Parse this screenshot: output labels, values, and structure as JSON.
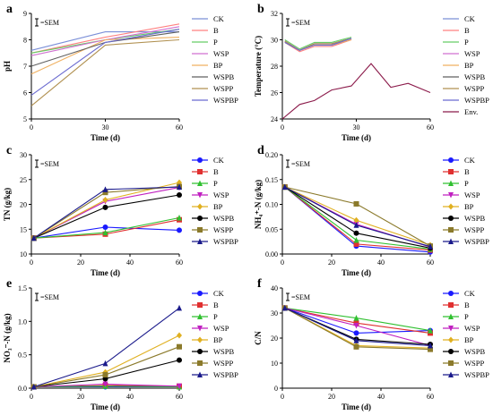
{
  "chart_data": [
    {
      "panel": "a",
      "type": "line",
      "legend_position": "right",
      "sem_note": "=SEM",
      "xlabel": "Time (d)",
      "ylabel": "pH",
      "xlim": [
        0,
        60
      ],
      "ylim": [
        5,
        9
      ],
      "xticks": [
        "0",
        "30",
        "60"
      ],
      "yticks": [
        "5",
        "6",
        "7",
        "8",
        "9"
      ],
      "x": [
        0,
        30,
        60
      ],
      "series": [
        {
          "name": "CK",
          "color": "#7b8fd8",
          "values": [
            7.6,
            8.3,
            8.3
          ]
        },
        {
          "name": "B",
          "color": "#ff8080",
          "values": [
            7.5,
            8.1,
            8.6
          ]
        },
        {
          "name": "P",
          "color": "#66cc66",
          "values": [
            7.5,
            8.0,
            8.4
          ]
        },
        {
          "name": "WSP",
          "color": "#d070d0",
          "values": [
            7.4,
            8.0,
            8.5
          ]
        },
        {
          "name": "BP",
          "color": "#f0b060",
          "values": [
            6.7,
            8.0,
            8.1
          ]
        },
        {
          "name": "WSPB",
          "color": "#606060",
          "values": [
            7.0,
            7.9,
            8.3
          ]
        },
        {
          "name": "WSPP",
          "color": "#b09050",
          "values": [
            5.5,
            7.8,
            8.0
          ]
        },
        {
          "name": "WSPBP",
          "color": "#6b6bd0",
          "values": [
            5.9,
            7.9,
            8.4
          ]
        }
      ]
    },
    {
      "panel": "b",
      "type": "line",
      "legend_position": "right",
      "sem_note": "=SEM",
      "xlabel": "Time (d)",
      "ylabel": "Temperature (°C)",
      "xlim": [
        0,
        60
      ],
      "ylim": [
        24,
        32
      ],
      "xticks": [
        "0",
        "30",
        "60"
      ],
      "yticks": [
        "24",
        "26",
        "28",
        "30",
        "32"
      ],
      "series": [
        {
          "name": "CK",
          "color": "#7b8fd8",
          "x": [
            1,
            7,
            13,
            20,
            28
          ],
          "values": [
            29.9,
            29.2,
            29.7,
            29.7,
            30.1
          ]
        },
        {
          "name": "B",
          "color": "#ff8080",
          "x": [
            1,
            7,
            13,
            20,
            28
          ],
          "values": [
            29.8,
            29.1,
            29.5,
            29.5,
            30.0
          ]
        },
        {
          "name": "P",
          "color": "#66cc66",
          "x": [
            1,
            7,
            13,
            20,
            28
          ],
          "values": [
            30.0,
            29.3,
            29.8,
            29.8,
            30.2
          ]
        },
        {
          "name": "WSP",
          "color": "#d070d0",
          "x": [
            1,
            7,
            13,
            20,
            28
          ],
          "values": [
            29.9,
            29.2,
            29.6,
            29.6,
            30.1
          ]
        },
        {
          "name": "BP",
          "color": "#f0b060",
          "x": [
            1,
            7,
            13,
            20,
            28
          ],
          "values": [
            29.8,
            29.2,
            29.6,
            29.6,
            30.0
          ]
        },
        {
          "name": "WSPB",
          "color": "#606060",
          "x": [
            1,
            7,
            13,
            20,
            28
          ],
          "values": [
            29.8,
            29.2,
            29.7,
            29.7,
            30.1
          ]
        },
        {
          "name": "WSPP",
          "color": "#b09050",
          "x": [
            1,
            7,
            13,
            20,
            28
          ],
          "values": [
            29.9,
            29.2,
            29.7,
            29.7,
            30.1
          ]
        },
        {
          "name": "WSPBP",
          "color": "#6b6bd0",
          "x": [
            1,
            7,
            13,
            20,
            28
          ],
          "values": [
            29.8,
            29.2,
            29.6,
            29.6,
            30.1
          ]
        },
        {
          "name": "Env.",
          "color": "#8b1a4a",
          "x": [
            0,
            7,
            13,
            20,
            28,
            36,
            44,
            51,
            60
          ],
          "values": [
            24.0,
            25.1,
            25.4,
            26.2,
            26.5,
            28.2,
            26.4,
            26.7,
            26.0
          ]
        }
      ]
    },
    {
      "panel": "c",
      "type": "line",
      "legend_position": "right",
      "sem_note": "=SEM",
      "xlabel": "Time (d)",
      "ylabel": "TN (g/kg)",
      "xlim": [
        0,
        60
      ],
      "ylim": [
        10,
        30
      ],
      "xticks": [
        "0",
        "20",
        "40",
        "60"
      ],
      "yticks": [
        "10",
        "15",
        "20",
        "25",
        "30"
      ],
      "x": [
        1,
        30,
        60
      ],
      "series": [
        {
          "name": "CK",
          "color": "#1a1aff",
          "marker": "circle",
          "values": [
            13.2,
            15.4,
            14.8
          ]
        },
        {
          "name": "B",
          "color": "#e03030",
          "marker": "square",
          "values": [
            13.2,
            14.0,
            16.9
          ]
        },
        {
          "name": "P",
          "color": "#30c030",
          "marker": "triangle-up",
          "values": [
            13.2,
            14.3,
            17.3
          ]
        },
        {
          "name": "WSP",
          "color": "#c020c0",
          "marker": "triangle-down",
          "values": [
            13.2,
            20.6,
            23.4
          ]
        },
        {
          "name": "BP",
          "color": "#e0b020",
          "marker": "diamond",
          "values": [
            13.2,
            20.9,
            24.4
          ]
        },
        {
          "name": "WSPB",
          "color": "#000000",
          "marker": "circle",
          "values": [
            13.2,
            19.4,
            21.9
          ]
        },
        {
          "name": "WSPP",
          "color": "#8b7a2b",
          "marker": "square",
          "values": [
            13.2,
            22.4,
            23.6
          ]
        },
        {
          "name": "WSPBP",
          "color": "#1a1a8b",
          "marker": "triangle-up",
          "values": [
            13.2,
            23.0,
            23.5
          ]
        }
      ]
    },
    {
      "panel": "d",
      "type": "line",
      "legend_position": "right",
      "sem_note": "=SEM",
      "xlabel": "Time (d)",
      "ylabel": "NH₄⁺-N (g/kg)",
      "xlim": [
        0,
        60
      ],
      "ylim": [
        0,
        0.2
      ],
      "xticks": [
        "0",
        "20",
        "40",
        "60"
      ],
      "yticks": [
        "0.00",
        "0.05",
        "0.10",
        "0.15",
        "0.20"
      ],
      "x": [
        1,
        30,
        60
      ],
      "series": [
        {
          "name": "CK",
          "color": "#1a1aff",
          "marker": "circle",
          "values": [
            0.135,
            0.016,
            0.004
          ]
        },
        {
          "name": "B",
          "color": "#e03030",
          "marker": "square",
          "values": [
            0.135,
            0.02,
            0.008
          ]
        },
        {
          "name": "P",
          "color": "#30c030",
          "marker": "triangle-up",
          "values": [
            0.135,
            0.028,
            0.01
          ]
        },
        {
          "name": "WSP",
          "color": "#c020c0",
          "marker": "triangle-down",
          "values": [
            0.135,
            0.06,
            0.014
          ]
        },
        {
          "name": "BP",
          "color": "#e0b020",
          "marker": "diamond",
          "values": [
            0.135,
            0.068,
            0.018
          ]
        },
        {
          "name": "WSPB",
          "color": "#000000",
          "marker": "circle",
          "values": [
            0.135,
            0.042,
            0.012
          ]
        },
        {
          "name": "WSPP",
          "color": "#8b7a2b",
          "marker": "square",
          "values": [
            0.135,
            0.101,
            0.016
          ]
        },
        {
          "name": "WSPBP",
          "color": "#1a1a8b",
          "marker": "triangle-up",
          "values": [
            0.135,
            0.058,
            0.015
          ]
        }
      ]
    },
    {
      "panel": "e",
      "type": "line",
      "legend_position": "right",
      "sem_note": "=SEM",
      "xlabel": "Time (d)",
      "ylabel": "NO₃⁻-N (g/kg)",
      "xlim": [
        0,
        60
      ],
      "ylim": [
        0,
        1.5
      ],
      "xticks": [
        "0",
        "20",
        "40",
        "60"
      ],
      "yticks": [
        "0.0",
        "0.5",
        "1.0",
        "1.5"
      ],
      "x": [
        1,
        30,
        60
      ],
      "series": [
        {
          "name": "CK",
          "color": "#1a1aff",
          "marker": "circle",
          "values": [
            0.02,
            0.02,
            0.02
          ]
        },
        {
          "name": "B",
          "color": "#e03030",
          "marker": "square",
          "values": [
            0.02,
            0.04,
            0.03
          ]
        },
        {
          "name": "P",
          "color": "#30c030",
          "marker": "triangle-up",
          "values": [
            0.02,
            0.03,
            0.02
          ]
        },
        {
          "name": "WSP",
          "color": "#c020c0",
          "marker": "triangle-down",
          "values": [
            0.02,
            0.06,
            0.03
          ]
        },
        {
          "name": "BP",
          "color": "#e0b020",
          "marker": "diamond",
          "values": [
            0.02,
            0.24,
            0.79
          ]
        },
        {
          "name": "WSPB",
          "color": "#000000",
          "marker": "circle",
          "values": [
            0.02,
            0.14,
            0.42
          ]
        },
        {
          "name": "WSPP",
          "color": "#8b7a2b",
          "marker": "square",
          "values": [
            0.02,
            0.2,
            0.62
          ]
        },
        {
          "name": "WSPBP",
          "color": "#1a1a8b",
          "marker": "triangle-up",
          "values": [
            0.02,
            0.37,
            1.2
          ]
        }
      ]
    },
    {
      "panel": "f",
      "type": "line",
      "legend_position": "right",
      "sem_note": "=SEM",
      "xlabel": "Time (d)",
      "ylabel": "C/N",
      "xlim": [
        0,
        60
      ],
      "ylim": [
        0,
        40
      ],
      "xticks": [
        "0",
        "20",
        "40",
        "60"
      ],
      "yticks": [
        "0",
        "10",
        "20",
        "30",
        "40"
      ],
      "x": [
        1,
        30,
        60
      ],
      "series": [
        {
          "name": "CK",
          "color": "#1a1aff",
          "marker": "circle",
          "values": [
            32,
            22,
            23
          ]
        },
        {
          "name": "B",
          "color": "#e03030",
          "marker": "square",
          "values": [
            32,
            26,
            22
          ]
        },
        {
          "name": "P",
          "color": "#30c030",
          "marker": "triangle-up",
          "values": [
            32,
            28,
            23
          ]
        },
        {
          "name": "WSP",
          "color": "#c020c0",
          "marker": "triangle-down",
          "values": [
            32,
            25,
            17
          ]
        },
        {
          "name": "BP",
          "color": "#e0b020",
          "marker": "diamond",
          "values": [
            32,
            17,
            16
          ]
        },
        {
          "name": "WSPB",
          "color": "#000000",
          "marker": "circle",
          "values": [
            32,
            19.5,
            17.5
          ]
        },
        {
          "name": "WSPP",
          "color": "#8b7a2b",
          "marker": "square",
          "values": [
            32,
            16.5,
            15.5
          ]
        },
        {
          "name": "WSPBP",
          "color": "#1a1a8b",
          "marker": "triangle-up",
          "values": [
            32,
            19,
            17
          ]
        }
      ]
    }
  ]
}
